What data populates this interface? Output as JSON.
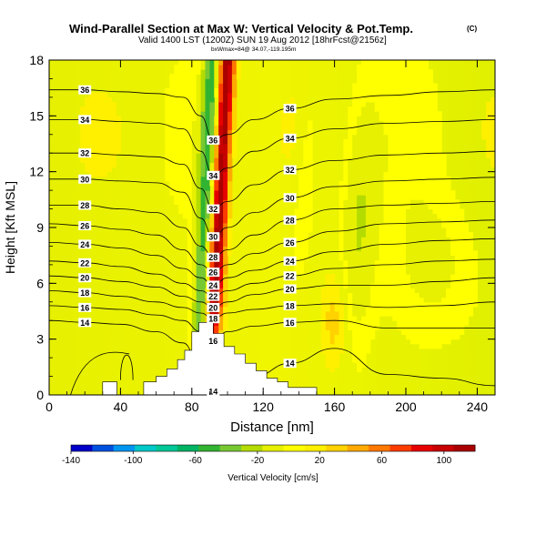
{
  "chart_data": {
    "type": "heatmap",
    "title": "Wind-Parallel Section at Max W: Vertical Velocity & Pot.Temp.",
    "title_mark": "(C)",
    "subtitle": "Valid 1400 LST (1200Z) SUN 19 Aug 2012 [18hrFcst@2156z]",
    "subtitle2": "bxWmax=84@ 34.07,-119.195m",
    "xlabel": "Distance [nm]",
    "ylabel": "Height [Kft MSL]",
    "xlim": [
      0,
      250
    ],
    "ylim": [
      0,
      18
    ],
    "x_ticks": [
      "0",
      "40",
      "80",
      "120",
      "160",
      "200",
      "240"
    ],
    "y_ticks": [
      "0",
      "3",
      "6",
      "9",
      "12",
      "15",
      "18"
    ],
    "colorbar": {
      "label": "Vertical Velocity [cm/s]",
      "range": [
        -140,
        120
      ],
      "tick_labels": [
        "-140",
        "-100",
        "-60",
        "-20",
        "20",
        "60",
        "100"
      ],
      "colors": [
        "#0000c8",
        "#0050e0",
        "#0096f0",
        "#00c8c8",
        "#00c896",
        "#00b464",
        "#32b432",
        "#78c832",
        "#b4dc00",
        "#e6f000",
        "#ffff00",
        "#fff000",
        "#ffd200",
        "#ffaa00",
        "#ff7800",
        "#ff3c00",
        "#e60000",
        "#c80000",
        "#aa0000"
      ]
    },
    "terrain": [
      [
        0,
        0
      ],
      [
        30,
        0
      ],
      [
        30,
        0.7
      ],
      [
        38,
        0.7
      ],
      [
        38,
        0
      ],
      [
        53,
        0
      ],
      [
        53,
        0.7
      ],
      [
        60,
        0.7
      ],
      [
        60,
        1
      ],
      [
        66,
        1
      ],
      [
        66,
        1.4
      ],
      [
        72,
        1.4
      ],
      [
        72,
        1.9
      ],
      [
        76,
        1.9
      ],
      [
        76,
        2.4
      ],
      [
        80,
        2.4
      ],
      [
        80,
        3.4
      ],
      [
        84,
        3.4
      ],
      [
        84,
        3.9
      ],
      [
        92,
        3.9
      ],
      [
        92,
        3.3
      ],
      [
        98,
        3.3
      ],
      [
        98,
        2.6
      ],
      [
        104,
        2.6
      ],
      [
        104,
        2.2
      ],
      [
        110,
        2.2
      ],
      [
        110,
        1.7
      ],
      [
        116,
        1.7
      ],
      [
        116,
        1.3
      ],
      [
        122,
        1.3
      ],
      [
        122,
        0.9
      ],
      [
        128,
        0.9
      ],
      [
        128,
        0.7
      ],
      [
        134,
        0.7
      ],
      [
        134,
        0.4
      ],
      [
        150,
        0.4
      ],
      [
        150,
        0
      ],
      [
        250,
        0
      ]
    ],
    "theta_contours": [
      {
        "label": "14",
        "values": [
          4.0,
          3.9,
          3.8,
          3.4,
          2.8,
          1.5,
          0.2,
          0.5,
          1.0,
          1.7,
          2.5,
          1.1,
          0.9,
          0.5
        ]
      },
      {
        "label": "16",
        "values": [
          4.8,
          4.7,
          4.6,
          4.3,
          4.0,
          3.4,
          2.9,
          3.4,
          3.7,
          3.9,
          4.0,
          3.6,
          3.6,
          3.6
        ]
      },
      {
        "label": "18",
        "values": [
          5.6,
          5.5,
          5.3,
          5.0,
          4.7,
          4.4,
          4.1,
          4.4,
          4.6,
          4.8,
          4.9,
          4.7,
          4.8,
          5.0
        ]
      },
      {
        "label": "20",
        "values": [
          6.4,
          6.3,
          6.1,
          5.8,
          5.3,
          5.0,
          4.7,
          5.0,
          5.4,
          5.7,
          5.9,
          5.9,
          6.1,
          6.3
        ]
      },
      {
        "label": "22",
        "values": [
          7.2,
          7.1,
          6.9,
          6.5,
          6.0,
          5.6,
          5.3,
          5.6,
          6.0,
          6.4,
          6.8,
          7.0,
          7.2,
          7.3
        ]
      },
      {
        "label": "24",
        "values": [
          8.2,
          8.1,
          7.9,
          7.5,
          6.8,
          6.3,
          5.9,
          6.3,
          6.7,
          7.2,
          7.7,
          8.1,
          8.3,
          8.4
        ]
      },
      {
        "label": "26",
        "values": [
          9.2,
          9.1,
          8.9,
          8.6,
          7.8,
          7.0,
          6.6,
          7.0,
          7.6,
          8.2,
          8.8,
          9.2,
          9.3,
          9.4
        ]
      },
      {
        "label": "28",
        "values": [
          10.2,
          10.2,
          10.0,
          9.8,
          9.0,
          8.0,
          7.4,
          7.8,
          8.6,
          9.4,
          10.0,
          10.2,
          10.3,
          10.4
        ]
      },
      {
        "label": "30",
        "values": [
          11.6,
          11.6,
          11.5,
          11.4,
          10.9,
          9.5,
          8.5,
          9.0,
          9.8,
          10.6,
          11.2,
          11.5,
          11.6,
          11.7
        ]
      },
      {
        "label": "32",
        "values": [
          13.0,
          13.0,
          12.9,
          12.8,
          12.4,
          11.1,
          10.0,
          10.4,
          11.3,
          12.1,
          12.6,
          12.9,
          13.0,
          13.1
        ]
      },
      {
        "label": "34",
        "values": [
          14.8,
          14.8,
          14.7,
          14.6,
          14.3,
          13.1,
          11.8,
          12.2,
          13.1,
          13.8,
          14.3,
          14.6,
          14.7,
          14.8
        ]
      },
      {
        "label": "36",
        "values": [
          16.4,
          16.4,
          16.3,
          16.2,
          16.0,
          15.0,
          13.7,
          14.0,
          14.8,
          15.4,
          15.9,
          16.1,
          16.3,
          16.4
        ]
      }
    ],
    "theta_x": [
      0,
      20,
      40,
      60,
      75,
      85,
      92,
      100,
      115,
      135,
      160,
      190,
      220,
      250
    ],
    "grid": false,
    "legend": "bottom"
  }
}
